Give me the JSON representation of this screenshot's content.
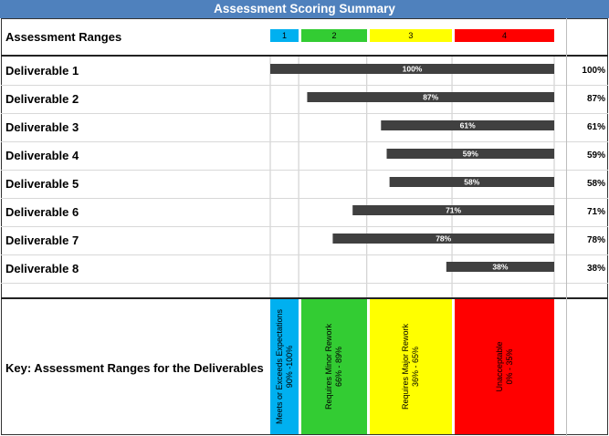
{
  "title": "Assessment Scoring Summary",
  "ranges_label": "Assessment Ranges",
  "ranges": [
    {
      "label": "1",
      "color": "#00b0f0",
      "from": 90,
      "to": 100
    },
    {
      "label": "2",
      "color": "#33cc33",
      "from": 66,
      "to": 89
    },
    {
      "label": "3",
      "color": "#ffff00",
      "from": 36,
      "to": 65
    },
    {
      "label": "4",
      "color": "#ff0000",
      "from": 0,
      "to": 35
    }
  ],
  "key_label": "Key:  Assessment Ranges for the Deliverables",
  "key": [
    {
      "name": "Meets or Exceeds Expectations",
      "range": "90% -100%"
    },
    {
      "name": "Requires Minor Rework",
      "range": "66% - 89%"
    },
    {
      "name": "Requires Major Rework",
      "range": "36% - 65%"
    },
    {
      "name": "Unacceptable",
      "range": "0% - 35%"
    }
  ],
  "chart_data": {
    "type": "bar",
    "orientation": "horizontal",
    "reversed_axis": true,
    "xlim": [
      0,
      100
    ],
    "categories": [
      "Deliverable 1",
      "Deliverable 2",
      "Deliverable 3",
      "Deliverable 4",
      "Deliverable 5",
      "Deliverable 6",
      "Deliverable 7",
      "Deliverable 8"
    ],
    "values": [
      100,
      87,
      61,
      59,
      58,
      71,
      78,
      38
    ],
    "data_labels": [
      "100%",
      "87%",
      "61%",
      "59%",
      "58%",
      "71%",
      "78%",
      "38%"
    ],
    "bar_color": "#404040",
    "grid": true
  }
}
